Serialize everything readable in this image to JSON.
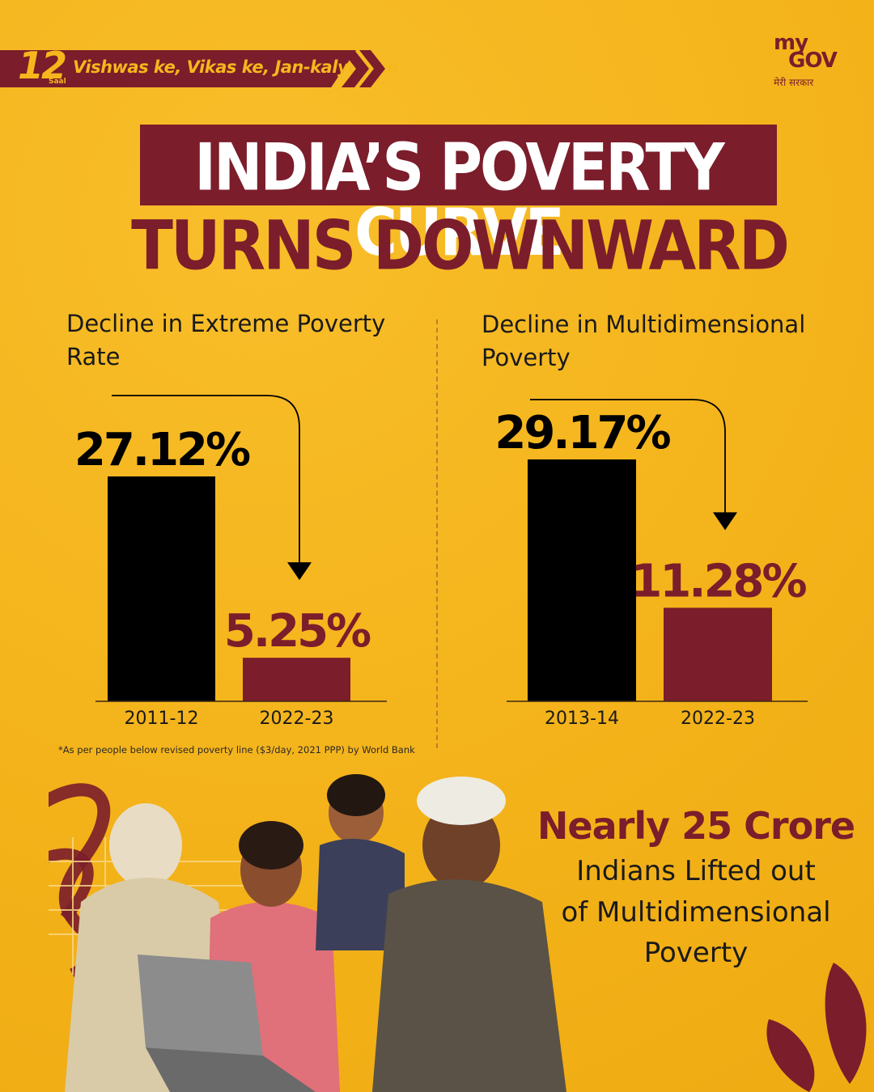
{
  "header": {
    "ribbon_number": "12",
    "ribbon_saal": "Saal",
    "ribbon_tagline": "Vishwas ke, Vikas ke, Jan-kalyan ke",
    "logo_my": "my",
    "logo_gov": "GOV",
    "logo_hindi": "मेरी सरकार"
  },
  "title": {
    "line1": "INDIA’S POVERTY CURVE",
    "line2": "TURNS DOWNWARD"
  },
  "colors": {
    "background": "#F6B71C",
    "maroon": "#7B1D2B",
    "black": "#000000",
    "white": "#FFFFFF"
  },
  "chart_data": [
    {
      "type": "bar",
      "title_lines": [
        "Decline in Extreme Poverty",
        "Rate"
      ],
      "categories": [
        "2011-12",
        "2022-23"
      ],
      "values": [
        27.12,
        5.25
      ],
      "value_labels": [
        "27.12%",
        "5.25%"
      ],
      "bar_colors": [
        "#000000",
        "#7B1D2B"
      ],
      "label_colors": [
        "#000000",
        "#7B1D2B"
      ],
      "ylim": [
        0,
        32
      ],
      "arrow": "downward from first bar to second bar",
      "grid": false
    },
    {
      "type": "bar",
      "title_lines": [
        "Decline in Multidimensional",
        "Poverty"
      ],
      "categories": [
        "2013-14",
        "2022-23"
      ],
      "values": [
        29.17,
        11.28
      ],
      "value_labels": [
        "29.17%",
        "11.28%"
      ],
      "bar_colors": [
        "#000000",
        "#7B1D2B"
      ],
      "label_colors": [
        "#000000",
        "#7B1D2B"
      ],
      "ylim": [
        0,
        32
      ],
      "arrow": "downward from first bar to second bar",
      "grid": false
    }
  ],
  "footnote": "*As per people below revised poverty line ($3/day, 2021 PPP) by World Bank",
  "stat": {
    "headline": "Nearly 25 Crore",
    "lines": [
      "Indians Lifted out",
      "of Multidimensional",
      "Poverty"
    ]
  }
}
